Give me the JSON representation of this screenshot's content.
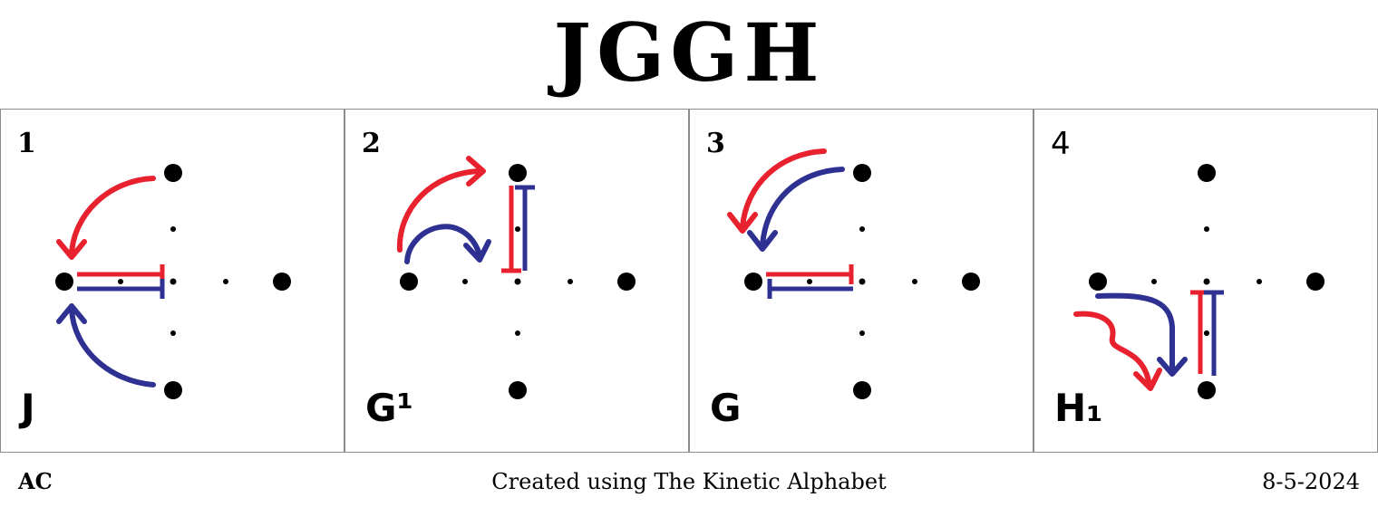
{
  "title": "JGGH",
  "colors": {
    "red": "#e8212e",
    "blue": "#2e3191",
    "dot": "#000000"
  },
  "panels": [
    {
      "number": "1",
      "label": "J"
    },
    {
      "number": "2",
      "label": "G¹"
    },
    {
      "number": "3",
      "label": "G"
    },
    {
      "number": "4",
      "label": "H₁"
    }
  ],
  "footer": {
    "left": "AC",
    "center": "Created using The Kinetic Alphabet",
    "right": "8-5-2024"
  }
}
